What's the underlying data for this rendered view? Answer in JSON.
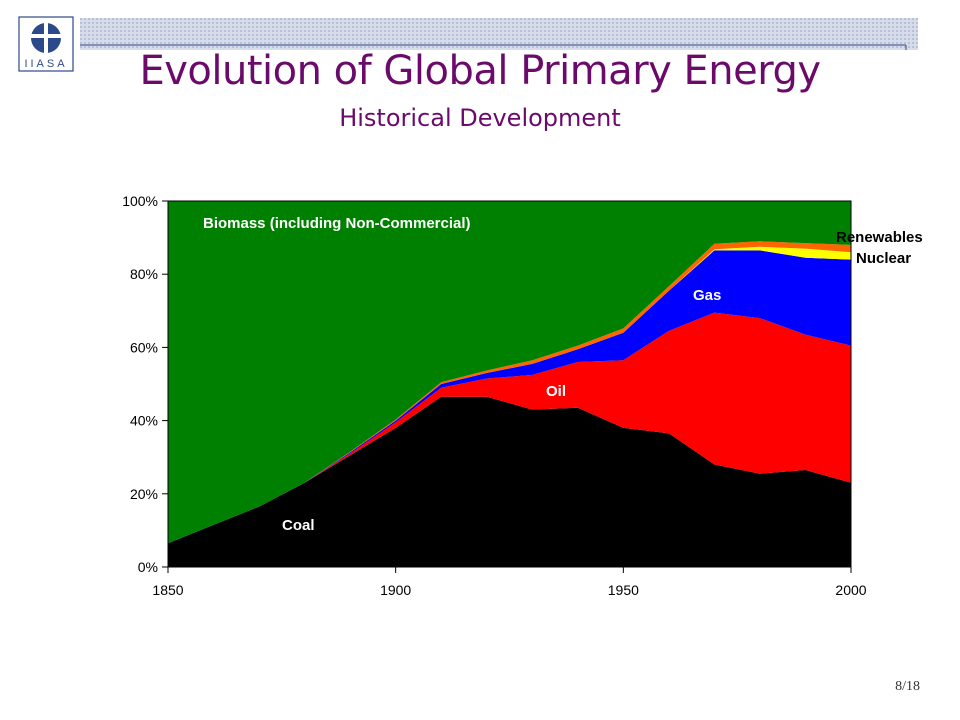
{
  "slide": {
    "title": "Evolution of Global Primary Energy",
    "subtitle": "Historical Development",
    "page_number": "8/18",
    "logo_text": "IIASA"
  },
  "colors": {
    "title": "#6b0a6b",
    "biomass": "#008000",
    "coal": "#000000",
    "oil": "#ff0000",
    "gas": "#0000ff",
    "nuclear": "#ffff00",
    "renewables": "#ff6600"
  },
  "chart_data": {
    "type": "area",
    "stacked": true,
    "x": [
      1850,
      1860,
      1870,
      1880,
      1890,
      1900,
      1910,
      1920,
      1930,
      1940,
      1950,
      1960,
      1970,
      1980,
      1990,
      2000
    ],
    "series": [
      {
        "name": "Coal",
        "values": [
          6.5,
          11.5,
          16.5,
          23,
          30.5,
          38,
          46.5,
          46.5,
          43,
          43.5,
          38,
          36.5,
          28,
          25.5,
          26.5,
          23
        ]
      },
      {
        "name": "Oil",
        "values": [
          0,
          0,
          0,
          0,
          0.5,
          1.5,
          2.5,
          5,
          9.5,
          12.5,
          18.5,
          28,
          41.5,
          42.5,
          37,
          37.5
        ]
      },
      {
        "name": "Gas",
        "values": [
          0,
          0,
          0,
          0,
          0.3,
          0.5,
          1,
          1.5,
          3,
          3.5,
          7.5,
          11,
          17,
          18.5,
          21,
          23.5
        ]
      },
      {
        "name": "Nuclear",
        "values": [
          0,
          0,
          0,
          0,
          0,
          0,
          0,
          0,
          0,
          0,
          0,
          0,
          0.3,
          1,
          2.5,
          2
        ]
      },
      {
        "name": "Renewables",
        "values": [
          0,
          0,
          0,
          0,
          0.2,
          0.3,
          0.5,
          0.7,
          1,
          1,
          1.2,
          1.2,
          1.5,
          1.5,
          1.5,
          2
        ]
      },
      {
        "name": "Biomass (including Non-Commercial)",
        "values": [
          93.5,
          88.5,
          83.5,
          77,
          68.5,
          59.7,
          49.5,
          46.3,
          43.5,
          39.5,
          34.8,
          23.3,
          11.7,
          11,
          11.5,
          12
        ]
      }
    ],
    "labels": {
      "biomass": "Biomass (including Non-Commercial)",
      "coal": "Coal",
      "oil": "Oil",
      "gas": "Gas",
      "renewables": "Renewables",
      "nuclear": "Nuclear"
    },
    "xticks": [
      "1850",
      "1900",
      "1950",
      "2000"
    ],
    "yticks": [
      "0%",
      "20%",
      "40%",
      "60%",
      "80%",
      "100%"
    ],
    "xlim": [
      1850,
      2000
    ],
    "ylim": [
      0,
      100
    ],
    "grid": false,
    "xlabel": "",
    "ylabel": ""
  }
}
